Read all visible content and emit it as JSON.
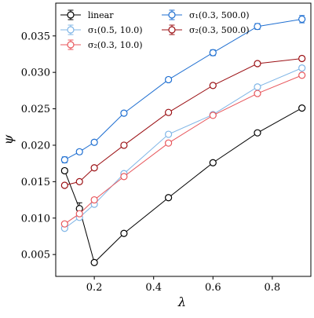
{
  "chart_data": {
    "type": "line",
    "title": "",
    "xlabel": "λ",
    "ylabel": "ψ",
    "xlim": [
      0.07,
      0.93
    ],
    "ylim": [
      0.002,
      0.0395
    ],
    "xticks": [
      0.2,
      0.4,
      0.6,
      0.8
    ],
    "xtick_labels": [
      "0.2",
      "0.4",
      "0.6",
      "0.8"
    ],
    "yticks": [
      0.005,
      0.01,
      0.015,
      0.02,
      0.025,
      0.03,
      0.035
    ],
    "ytick_labels": [
      "0.005",
      "0.010",
      "0.015",
      "0.020",
      "0.025",
      "0.030",
      "0.035"
    ],
    "grid": false,
    "legend_position": "top-left",
    "x": [
      0.1,
      0.15,
      0.2,
      0.3,
      0.45,
      0.6,
      0.75,
      0.9
    ],
    "series": [
      {
        "name": "linear",
        "color": "#000000",
        "values": [
          0.0165,
          0.0113,
          0.0039,
          0.0079,
          0.0128,
          0.0176,
          0.0217,
          0.0251
        ],
        "errors": [
          0.0003,
          0.0008,
          0.0002,
          0.0002,
          0.0002,
          0.0002,
          0.0002,
          0.0002
        ]
      },
      {
        "name": "σ₁(0.5, 10.0)",
        "color": "#7fb5e6",
        "values": [
          0.0086,
          0.0101,
          0.0119,
          0.0161,
          0.0215,
          0.0242,
          0.028,
          0.0306
        ],
        "errors": [
          0.0002,
          0.0002,
          0.0002,
          0.0002,
          0.0002,
          0.0002,
          0.0003,
          0.0003
        ]
      },
      {
        "name": "σ₂(0.3, 10.0)",
        "color": "#e8575c",
        "values": [
          0.0092,
          0.0106,
          0.0125,
          0.0157,
          0.0203,
          0.0241,
          0.0271,
          0.0296
        ],
        "errors": [
          0.0002,
          0.0002,
          0.0002,
          0.0002,
          0.0002,
          0.0002,
          0.0002,
          0.0002
        ]
      },
      {
        "name": "σ₁(0.3, 500.0)",
        "color": "#1f6fd1",
        "values": [
          0.018,
          0.0191,
          0.0204,
          0.0244,
          0.029,
          0.0327,
          0.0363,
          0.0373
        ],
        "errors": [
          0.0004,
          0.0003,
          0.0003,
          0.0003,
          0.0003,
          0.0004,
          0.0004,
          0.0005
        ]
      },
      {
        "name": "σ₂(0.3, 500.0)",
        "color": "#9b1014",
        "values": [
          0.0145,
          0.015,
          0.0169,
          0.02,
          0.0245,
          0.0282,
          0.0312,
          0.0319
        ],
        "errors": [
          0.0002,
          0.0002,
          0.0002,
          0.0002,
          0.0002,
          0.0002,
          0.0003,
          0.0003
        ]
      }
    ]
  }
}
